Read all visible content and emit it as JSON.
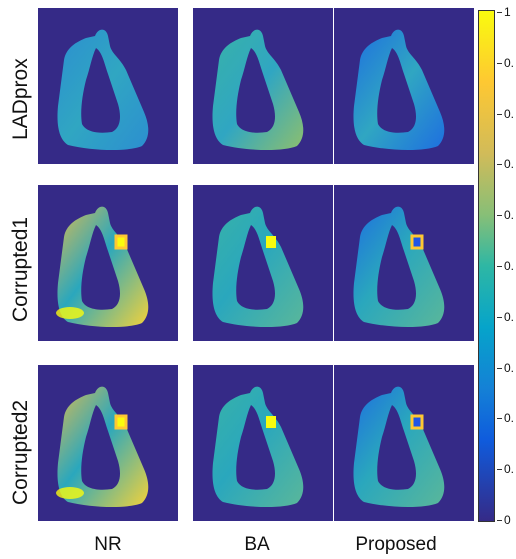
{
  "rows": [
    "LADprox",
    "Corrupted1",
    "Corrupted2"
  ],
  "columns": [
    "NR",
    "BA",
    "Proposed"
  ],
  "colorbar": {
    "ticks": [
      "1",
      "0.",
      "0.",
      "0.",
      "0.",
      "0.",
      "0.",
      "0.",
      "0.",
      "0.",
      "0"
    ]
  },
  "colors": {
    "background": "#352a87",
    "tissue_base": [
      "#2c8fd0",
      "#38b2a8",
      "#1e6fe0"
    ],
    "hot": "#f9fb0e",
    "warm": "#fec832"
  }
}
